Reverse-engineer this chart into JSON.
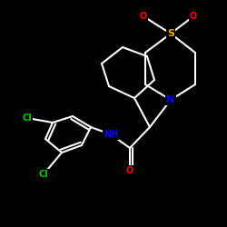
{
  "background": "#000000",
  "bond_color": "#ffffff",
  "bond_width": 1.5,
  "atom_colors": {
    "N": "#0000ff",
    "O": "#ff0000",
    "S": "#ffa500",
    "Cl": "#00cc00",
    "C": "#ffffff"
  },
  "font_size_atom": 8,
  "font_size_small": 7,
  "fig_w": 2.5,
  "fig_h": 2.5,
  "dpi": 100,
  "xlim": [
    0,
    250
  ],
  "ylim": [
    0,
    250
  ]
}
